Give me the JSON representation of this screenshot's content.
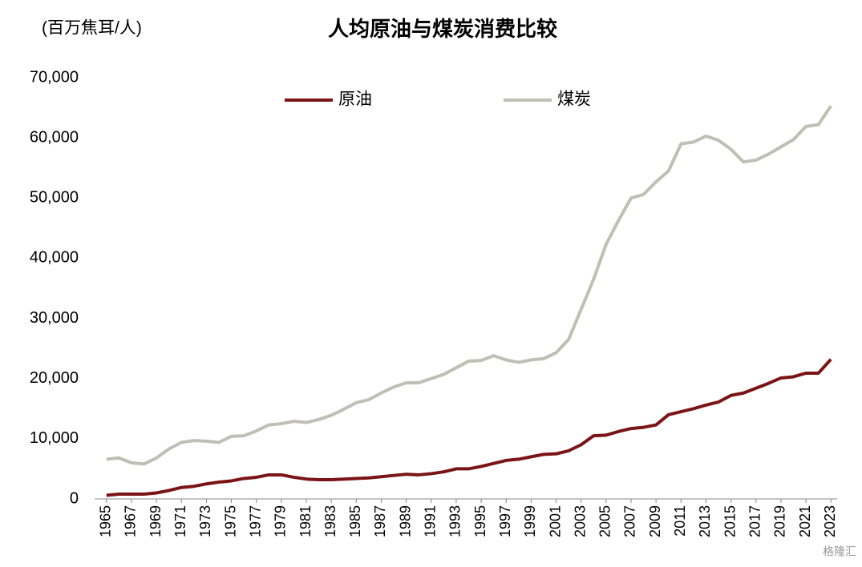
{
  "chart_data": {
    "type": "line",
    "title": "人均原油与煤炭消费比较",
    "y_label": "(百万焦耳/人)",
    "watermark": "格隆汇",
    "x": [
      1965,
      1966,
      1967,
      1968,
      1969,
      1970,
      1971,
      1972,
      1973,
      1974,
      1975,
      1976,
      1977,
      1978,
      1979,
      1980,
      1981,
      1982,
      1983,
      1984,
      1985,
      1986,
      1987,
      1988,
      1989,
      1990,
      1991,
      1992,
      1993,
      1994,
      1995,
      1996,
      1997,
      1998,
      1999,
      2000,
      2001,
      2002,
      2003,
      2004,
      2005,
      2006,
      2007,
      2008,
      2009,
      2010,
      2011,
      2012,
      2013,
      2014,
      2015,
      2016,
      2017,
      2018,
      2019,
      2020,
      2021,
      2022,
      2023
    ],
    "series": [
      {
        "name": "原油",
        "color": "#7b1416",
        "values": [
          600,
          800,
          800,
          800,
          1000,
          1400,
          1900,
          2100,
          2500,
          2800,
          3000,
          3400,
          3600,
          4000,
          4000,
          3600,
          3300,
          3200,
          3200,
          3300,
          3400,
          3500,
          3700,
          3900,
          4100,
          4000,
          4200,
          4500,
          5000,
          5000,
          5400,
          5900,
          6400,
          6600,
          7000,
          7400,
          7500,
          8000,
          9000,
          10500,
          10600,
          11200,
          11700,
          11900,
          12300,
          14000,
          14500,
          15000,
          15600,
          16100,
          17200,
          17600,
          18400,
          19200,
          20100,
          20300,
          20900,
          20900,
          23200
        ]
      },
      {
        "name": "煤炭",
        "color": "#c0bfb3",
        "values": [
          6600,
          6800,
          6000,
          5800,
          6800,
          8300,
          9400,
          9700,
          9600,
          9400,
          10400,
          10500,
          11300,
          12300,
          12500,
          12900,
          12700,
          13200,
          13900,
          14900,
          16000,
          16500,
          17600,
          18600,
          19300,
          19300,
          20000,
          20700,
          21800,
          22900,
          23000,
          23800,
          23100,
          22700,
          23100,
          23300,
          24300,
          26500,
          31500,
          36500,
          42300,
          46300,
          50000,
          50600,
          52700,
          54500,
          59000,
          59300,
          60300,
          59600,
          58100,
          56000,
          56300,
          57300,
          58500,
          59700,
          61900,
          62200,
          65300
        ]
      }
    ],
    "xlim": [
      1964.5,
      2023.5
    ],
    "xticks": [
      1965,
      1967,
      1969,
      1971,
      1973,
      1975,
      1977,
      1979,
      1981,
      1983,
      1985,
      1987,
      1989,
      1991,
      1993,
      1995,
      1997,
      1999,
      2001,
      2003,
      2005,
      2007,
      2009,
      2011,
      2013,
      2015,
      2017,
      2019,
      2021,
      2023
    ],
    "ylim": [
      0,
      70000
    ],
    "yticks": [
      0,
      {
        "value": 10000,
        "label": "10,000"
      },
      {
        "value": 20000,
        "label": "20,000"
      },
      {
        "value": 30000,
        "label": "30,000"
      },
      {
        "value": 40000,
        "label": "40,000"
      },
      {
        "value": 50000,
        "label": "50,000"
      },
      {
        "value": 60000,
        "label": "60,000"
      },
      {
        "value": 70000,
        "label": "70,000"
      }
    ],
    "grid": false,
    "legend": "top"
  }
}
